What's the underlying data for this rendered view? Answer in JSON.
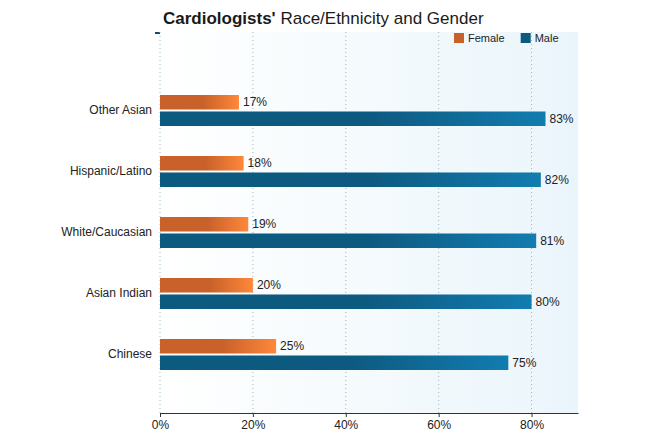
{
  "chart_data": {
    "type": "bar",
    "orientation": "horizontal",
    "title": "Cardiologists' Race/Ethnicity and Gender",
    "categories": [
      "Other Asian",
      "Hispanic/Latino",
      "White/Caucasian",
      "Asian Indian",
      "Chinese"
    ],
    "series": [
      {
        "name": "Female",
        "color": "#c9622a",
        "values": [
          17,
          18,
          19,
          20,
          25
        ],
        "value_labels": [
          "17%",
          "18%",
          "19%",
          "20%",
          "25%"
        ]
      },
      {
        "name": "Male",
        "color": "#0d5a80",
        "values": [
          83,
          82,
          81,
          80,
          75
        ],
        "value_labels": [
          "83%",
          "82%",
          "81%",
          "80%",
          "75%"
        ]
      }
    ],
    "xlim": [
      0,
      90
    ],
    "xticks": [
      {
        "value": 0,
        "label": "0%"
      },
      {
        "value": 20,
        "label": "20%"
      },
      {
        "value": 40,
        "label": "40%"
      },
      {
        "value": 60,
        "label": "60%"
      },
      {
        "value": 80,
        "label": "80%"
      }
    ],
    "grid": true,
    "legend": "top-right",
    "data_labels": true
  }
}
